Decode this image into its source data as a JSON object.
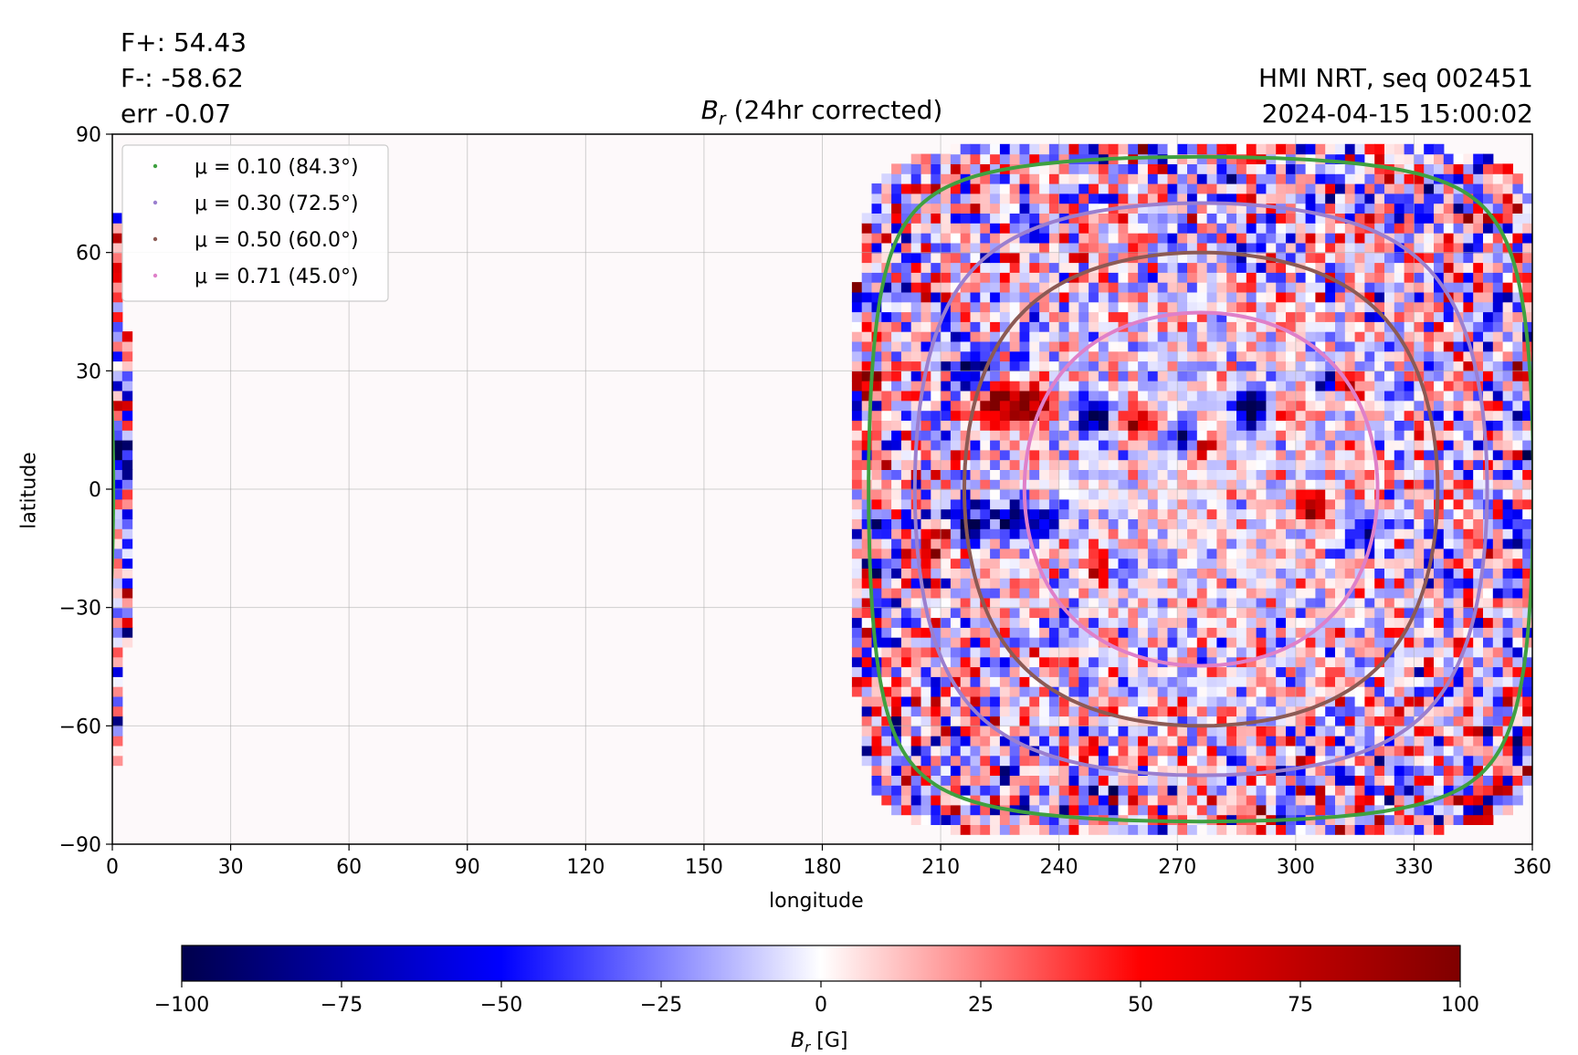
{
  "header": {
    "flux_pos": "F+: 54.43",
    "flux_neg": "F-: -58.62",
    "err": "err -0.07",
    "instrument": "HMI NRT, seq 002451",
    "timestamp": "2024-04-15 15:00:02"
  },
  "chart_data": {
    "type": "heatmap",
    "title": "B_r (24hr corrected)",
    "title_main": "B",
    "title_sub": "r",
    "title_rest": " (24hr corrected)",
    "xlabel": "longitude",
    "ylabel": "latitude",
    "xlim": [
      0,
      360
    ],
    "ylim": [
      -90,
      90
    ],
    "x_ticks": [
      0,
      30,
      60,
      90,
      120,
      150,
      180,
      210,
      240,
      270,
      300,
      330,
      360
    ],
    "y_ticks": [
      {
        "value": 90,
        "label": "90"
      },
      {
        "value": 60,
        "label": "60"
      },
      {
        "value": 30,
        "label": "30"
      },
      {
        "value": 0,
        "label": "0"
      },
      {
        "value": -30,
        "label": "−30"
      },
      {
        "value": -60,
        "label": "−60"
      },
      {
        "value": -90,
        "label": "−90"
      }
    ],
    "grid": true,
    "legend_position": "top-left",
    "disk_center_lon": 276,
    "mu_contours": [
      {
        "label": "μ = 0.10 (84.3°)",
        "mu": 0.1,
        "color": "#3fa040"
      },
      {
        "label": "μ = 0.30 (72.5°)",
        "mu": 0.3,
        "color": "#9b7fcf"
      },
      {
        "label": "μ = 0.50 (60.0°)",
        "mu": 0.5,
        "color": "#8c5a54"
      },
      {
        "label": "μ = 0.71 (45.0°)",
        "mu": 0.71,
        "color": "#df80c9"
      }
    ],
    "colorbar": {
      "min": -100,
      "max": 100,
      "ticks": [
        {
          "value": -100,
          "label": "−100"
        },
        {
          "value": -75,
          "label": "−75"
        },
        {
          "value": -50,
          "label": "−50"
        },
        {
          "value": -25,
          "label": "−25"
        },
        {
          "value": 0,
          "label": "0"
        },
        {
          "value": 25,
          "label": "25"
        },
        {
          "value": 50,
          "label": "50"
        },
        {
          "value": 75,
          "label": "75"
        },
        {
          "value": 100,
          "label": "100"
        }
      ],
      "label_main": "B",
      "label_sub": "r",
      "label_unit": " [G]",
      "colors": [
        "#00004c",
        "#0000ff",
        "#ffffff",
        "#ff0000",
        "#7f0000"
      ]
    }
  }
}
